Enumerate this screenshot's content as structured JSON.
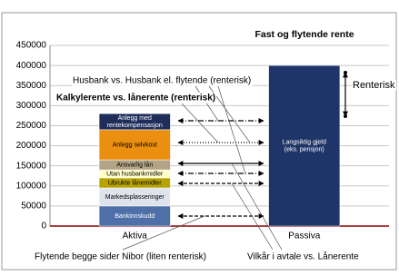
{
  "chart_data": {
    "type": "stacked_bar",
    "title": "Fast og flytende rente",
    "categories": [
      "Aktiva",
      "Passiva"
    ],
    "series": [
      {
        "name": "Bankinnskudd",
        "color": "#4f6fa8",
        "values": [
          50000,
          null
        ]
      },
      {
        "name": "Markedsplasseringer",
        "color": "#dfe3ec",
        "values": [
          45000,
          null
        ]
      },
      {
        "name": "Ubrukte lånemidler",
        "color": "#b8a400",
        "values": [
          25000,
          null
        ]
      },
      {
        "name": "Utan husbankmidler",
        "color": "#ffffc8",
        "values": [
          20000,
          null
        ]
      },
      {
        "name": "Ansvarlig lån",
        "color": "#b3a486",
        "values": [
          25000,
          null
        ]
      },
      {
        "name": "Anlegg selvkost",
        "color": "#ea8f10",
        "values": [
          75000,
          null
        ]
      },
      {
        "name": "Anlegg med rentekompensasjon",
        "color": "#1e2d5a",
        "values": [
          40000,
          null
        ]
      },
      {
        "name": "Langsiktig gjeld (eks. pensjon)",
        "color": "#1f3468",
        "values": [
          null,
          400000
        ]
      }
    ],
    "annotations": [
      "Husbank vs. Husbank el. flytende (renterisk)",
      "Kalkylerente vs. lånerente (renterisk)",
      "Renterisk",
      "Flytende begge sider Nibor (liten renterisk)",
      "Vilkår i avtale vs. Lånerente"
    ],
    "ylim": [
      0,
      450000
    ],
    "yticks": [
      0,
      50000,
      100000,
      150000,
      200000,
      250000,
      300000,
      350000,
      400000,
      450000
    ],
    "grid": true
  }
}
